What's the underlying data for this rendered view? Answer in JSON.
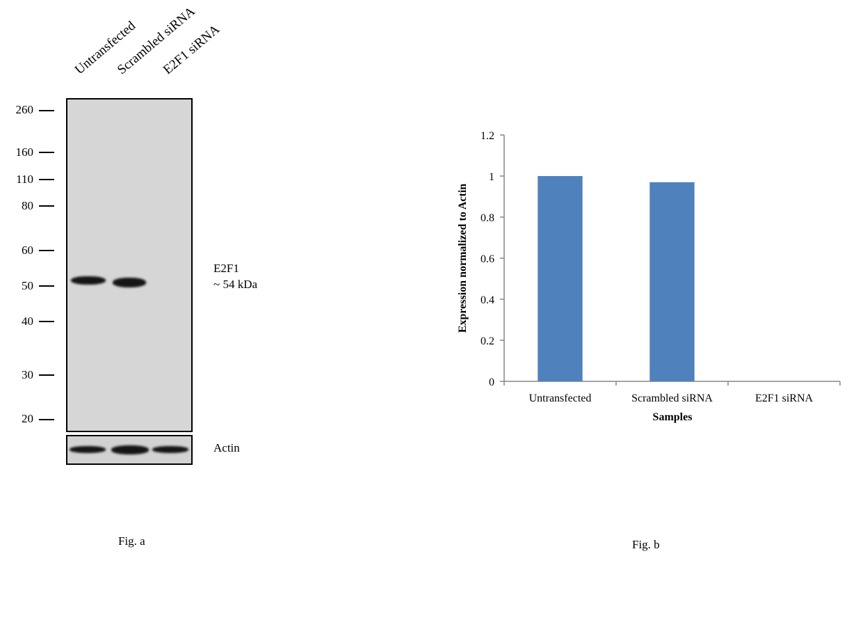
{
  "fig_a": {
    "lanes": [
      "Untransfected",
      "Scrambled siRNA",
      "E2F1 siRNA"
    ],
    "markers": [
      "260",
      "160",
      "110",
      "80",
      "60",
      "50",
      "40",
      "30",
      "20"
    ],
    "band_label": "E2F1",
    "band_size": "~ 54 kDa",
    "loading_control": "Actin",
    "caption": "Fig. a"
  },
  "fig_b": {
    "caption": "Fig. b"
  },
  "chart_data": {
    "type": "bar",
    "categories": [
      "Untransfected",
      "Scrambled siRNA",
      "E2F1 siRNA"
    ],
    "values": [
      1.0,
      0.97,
      0.0
    ],
    "xlabel": "Samples",
    "ylabel": "Expression  normalized to Actin",
    "ylim": [
      0,
      1.2
    ],
    "yticks": [
      "0",
      "0.2",
      "0.4",
      "0.6",
      "0.8",
      "1",
      "1.2"
    ],
    "bar_color": "#4f81bd",
    "grid": false,
    "legend": "none"
  }
}
